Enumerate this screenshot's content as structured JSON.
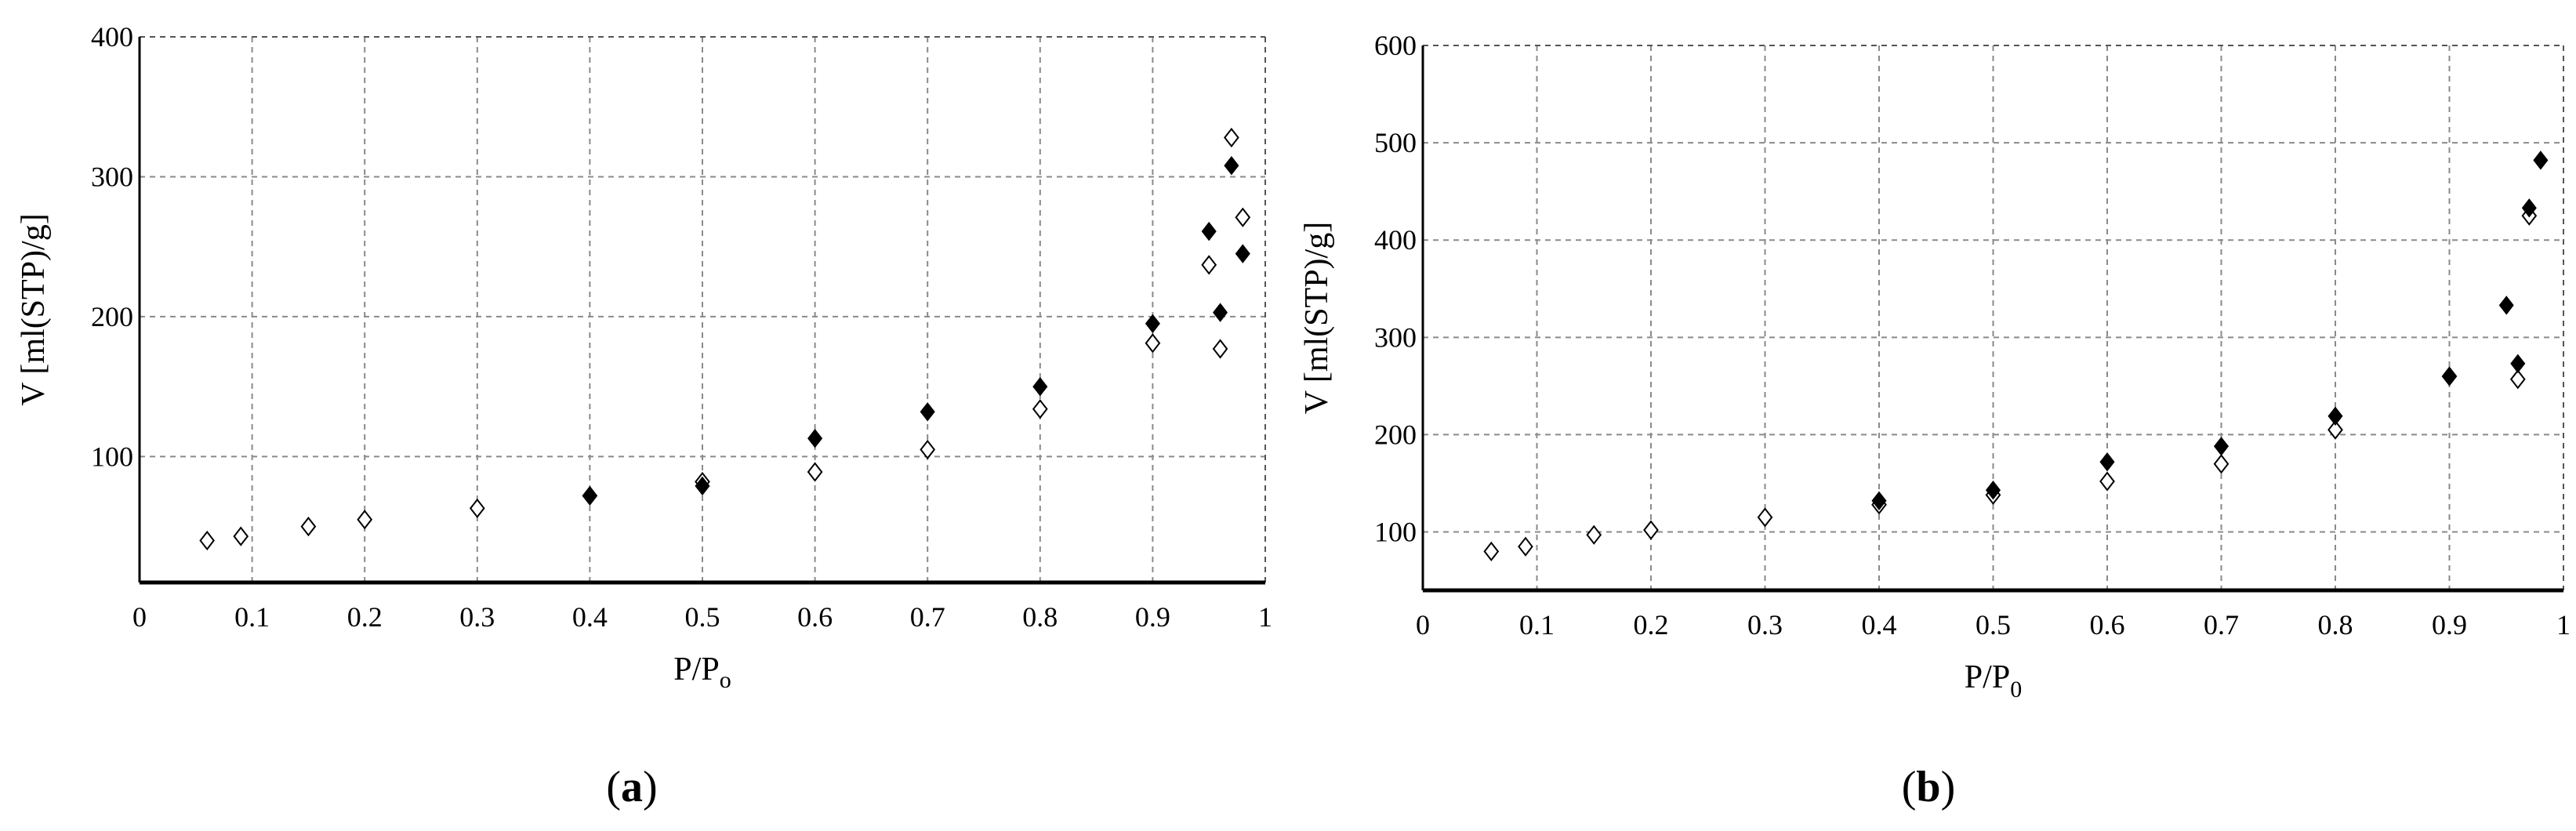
{
  "chart_data": [
    {
      "type": "scatter",
      "panel_label": "a",
      "xlabel_main": "P/P",
      "xlabel_sub": "o",
      "ylabel": "V [ml(STP)/g]",
      "xlim": [
        0,
        1
      ],
      "ylim": [
        10,
        400
      ],
      "xticks": [
        "0",
        "0.1",
        "0.2",
        "0.3",
        "0.4",
        "0.5",
        "0.6",
        "0.7",
        "0.8",
        "0.9",
        "1"
      ],
      "yticks": [
        "100",
        "200",
        "300",
        "400"
      ],
      "grid": true,
      "series": [
        {
          "marker": "open-diamond",
          "x": [
            0.06,
            0.09,
            0.15,
            0.2,
            0.3,
            0.4,
            0.5,
            0.6,
            0.7,
            0.8,
            0.9,
            0.95,
            0.96,
            0.97,
            0.98
          ],
          "y": [
            40,
            43,
            50,
            55,
            63,
            72,
            82,
            89,
            105,
            134,
            181,
            237,
            177,
            328,
            271
          ]
        },
        {
          "marker": "filled-diamond",
          "x": [
            0.4,
            0.5,
            0.6,
            0.7,
            0.8,
            0.9,
            0.95,
            0.96,
            0.97,
            0.98
          ],
          "y": [
            72,
            79,
            113,
            132,
            150,
            195,
            261,
            203,
            308,
            245
          ]
        }
      ]
    },
    {
      "type": "scatter",
      "panel_label": "b",
      "xlabel_main": "P/P",
      "xlabel_sub": "0",
      "ylabel": "V [ml(STP)/g]",
      "xlim": [
        0,
        1
      ],
      "ylim": [
        40,
        600
      ],
      "xticks": [
        "0",
        "0.1",
        "0.2",
        "0.3",
        "0.4",
        "0.5",
        "0.6",
        "0.7",
        "0.8",
        "0.9",
        "1"
      ],
      "yticks": [
        "100",
        "200",
        "300",
        "400",
        "500",
        "600"
      ],
      "grid": true,
      "series": [
        {
          "marker": "open-diamond",
          "x": [
            0.06,
            0.09,
            0.15,
            0.2,
            0.3,
            0.4,
            0.5,
            0.6,
            0.7,
            0.8,
            0.9,
            0.96,
            0.97
          ],
          "y": [
            80,
            85,
            97,
            102,
            115,
            128,
            138,
            152,
            170,
            205,
            260,
            257,
            425
          ]
        },
        {
          "marker": "filled-diamond",
          "x": [
            0.4,
            0.5,
            0.6,
            0.7,
            0.8,
            0.9,
            0.95,
            0.96,
            0.97,
            0.98
          ],
          "y": [
            132,
            143,
            172,
            188,
            219,
            260,
            333,
            273,
            433,
            482
          ]
        }
      ]
    }
  ]
}
